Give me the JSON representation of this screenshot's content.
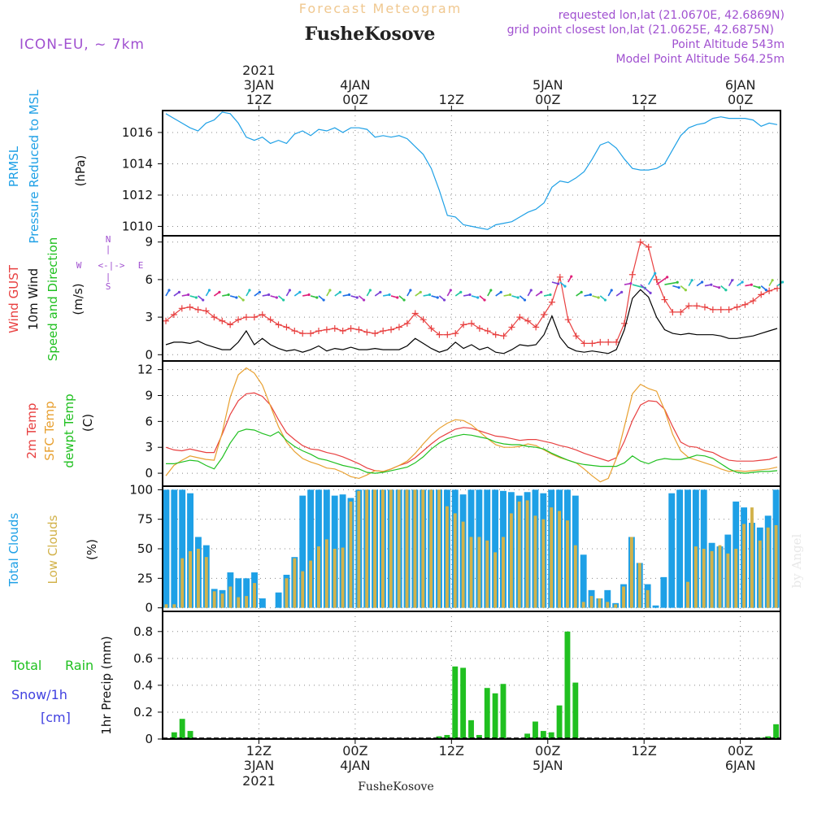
{
  "header": {
    "program_title": "Forecast Meteogram",
    "model": "ICON-EU, ~ 7km",
    "location": "FusheKosove",
    "requested_point": "requested lon,lat (21.0670E, 42.6869N)",
    "grid_point": "grid point closest lon,lat (21.0625E, 42.6875N)",
    "point_altitude": "Point Altitude 543m",
    "model_altitude": "Model Point Altitude 564.25m",
    "watermark": "by Angel"
  },
  "time_axis": {
    "start_hour": 0,
    "end_hour": 77,
    "year_label": "2021",
    "ticks": [
      {
        "hour": 12,
        "day": "3JAN",
        "time": "12Z",
        "year": "2021"
      },
      {
        "hour": 24,
        "day": "4JAN",
        "time": "00Z",
        "year": ""
      },
      {
        "hour": 36,
        "day": "",
        "time": "12Z",
        "year": ""
      },
      {
        "hour": 48,
        "day": "5JAN",
        "time": "00Z",
        "year": ""
      },
      {
        "hour": 60,
        "day": "",
        "time": "12Z",
        "year": ""
      },
      {
        "hour": 72,
        "day": "6JAN",
        "time": "00Z",
        "year": ""
      }
    ],
    "bottom_location": "FusheKosove"
  },
  "chart_data": [
    {
      "id": "pressure",
      "type": "line",
      "labels": {
        "left1": "PRMSL",
        "left2": "Pressure Reduced to MSL",
        "unit": "(hPa)"
      },
      "ylim": [
        1009.4,
        1017.4
      ],
      "yticks": [
        1010,
        1012,
        1014,
        1016
      ],
      "series": [
        {
          "name": "PRMSL",
          "color": "#1ea0e6",
          "values": [
            1017.2,
            1016.9,
            1016.6,
            1016.3,
            1016.1,
            1016.6,
            1016.8,
            1017.3,
            1017.2,
            1016.6,
            1015.7,
            1015.5,
            1015.7,
            1015.3,
            1015.5,
            1015.3,
            1015.9,
            1016.1,
            1015.8,
            1016.2,
            1016.1,
            1016.3,
            1016.0,
            1016.3,
            1016.3,
            1016.2,
            1015.7,
            1015.8,
            1015.7,
            1015.8,
            1015.6,
            1015.1,
            1014.6,
            1013.7,
            1012.3,
            1010.7,
            1010.6,
            1010.1,
            1010.0,
            1009.9,
            1009.8,
            1010.1,
            1010.2,
            1010.3,
            1010.6,
            1010.9,
            1011.1,
            1011.5,
            1012.5,
            1012.9,
            1012.8,
            1013.1,
            1013.5,
            1014.3,
            1015.2,
            1015.4,
            1015.0,
            1014.3,
            1013.7,
            1013.6,
            1013.6,
            1013.7,
            1014.0,
            1014.9,
            1015.8,
            1016.3,
            1016.5,
            1016.6,
            1016.9,
            1017.0,
            1016.9,
            1016.9,
            1016.9,
            1016.8,
            1016.4,
            1016.6,
            1016.5
          ]
        }
      ]
    },
    {
      "id": "wind",
      "type": "line",
      "labels": {
        "left1": "Wind GUST",
        "left2": "10m Wind",
        "left3": "Speed and Direction",
        "unit": "(m/s)",
        "compass_n": "N",
        "compass_w": "W",
        "compass_e": "E",
        "compass_s": "S"
      },
      "ylim": [
        -0.5,
        9.5
      ],
      "yticks": [
        0,
        3,
        6,
        9
      ],
      "series": [
        {
          "name": "Wind GUST",
          "color": "#e84040",
          "marker": "+",
          "values": [
            2.7,
            3.2,
            3.7,
            3.8,
            3.6,
            3.5,
            3.0,
            2.7,
            2.4,
            2.8,
            3.0,
            3.0,
            3.2,
            2.8,
            2.4,
            2.2,
            1.9,
            1.7,
            1.7,
            1.9,
            2.0,
            2.1,
            1.9,
            2.1,
            2.0,
            1.8,
            1.7,
            1.9,
            2.0,
            2.2,
            2.5,
            3.3,
            2.8,
            2.1,
            1.6,
            1.6,
            1.7,
            2.4,
            2.5,
            2.1,
            1.9,
            1.6,
            1.5,
            2.2,
            3.0,
            2.7,
            2.2,
            3.2,
            4.2,
            6.2,
            2.8,
            1.5,
            0.9,
            0.9,
            1.0,
            1.0,
            1.0,
            2.5,
            6.4,
            9.0,
            8.6,
            6.0,
            4.4,
            3.4,
            3.4,
            3.9,
            3.9,
            3.8,
            3.6,
            3.6,
            3.6,
            3.8,
            4.0,
            4.3,
            4.8,
            5.1,
            5.3
          ]
        },
        {
          "name": "10m Wind",
          "color": "#000000",
          "marker": "",
          "values": [
            0.8,
            1.0,
            1.0,
            0.9,
            1.1,
            0.8,
            0.6,
            0.4,
            0.4,
            1.0,
            1.9,
            0.8,
            1.3,
            0.8,
            0.5,
            0.3,
            0.4,
            0.2,
            0.4,
            0.7,
            0.3,
            0.5,
            0.4,
            0.6,
            0.4,
            0.4,
            0.5,
            0.4,
            0.4,
            0.4,
            0.7,
            1.3,
            0.9,
            0.5,
            0.2,
            0.4,
            1.0,
            0.5,
            0.8,
            0.4,
            0.6,
            0.2,
            0.1,
            0.4,
            0.8,
            0.7,
            0.8,
            1.6,
            3.1,
            1.4,
            0.6,
            0.3,
            0.2,
            0.3,
            0.2,
            0.1,
            0.4,
            2.0,
            4.5,
            5.2,
            4.6,
            3.0,
            2.0,
            1.7,
            1.6,
            1.7,
            1.6,
            1.6,
            1.6,
            1.5,
            1.3,
            1.3,
            1.4,
            1.5,
            1.7,
            1.9,
            2.1
          ]
        }
      ],
      "barb_colors": [
        "#1e6ee6",
        "#7a40d6",
        "#1e6ee6",
        "#7a40d6",
        "#20b0e0",
        "#90d040",
        "#b030c0",
        "#e0207a",
        "#20c0c0",
        "#20c8a0",
        "#30c040"
      ]
    },
    {
      "id": "temperature",
      "type": "line",
      "labels": {
        "left1": "2m Temp",
        "left2": "SFC Temp",
        "left3": "dewpt Temp",
        "unit": "(C)"
      },
      "ylim": [
        -1.5,
        13.0
      ],
      "yticks": [
        0,
        3,
        6,
        9,
        12
      ],
      "series": [
        {
          "name": "2m Temp",
          "color": "#e84040",
          "values": [
            3.0,
            2.7,
            2.6,
            2.8,
            2.6,
            2.4,
            2.4,
            4.5,
            6.8,
            8.4,
            9.2,
            9.3,
            8.9,
            7.9,
            6.2,
            4.7,
            3.9,
            3.2,
            2.8,
            2.7,
            2.4,
            2.2,
            1.9,
            1.5,
            1.1,
            0.6,
            0.3,
            0.2,
            0.5,
            0.9,
            1.2,
            1.8,
            2.6,
            3.4,
            4.1,
            4.6,
            5.1,
            5.3,
            5.2,
            4.9,
            4.6,
            4.3,
            4.2,
            4.0,
            3.8,
            3.9,
            3.9,
            3.7,
            3.5,
            3.2,
            3.0,
            2.7,
            2.3,
            2.0,
            1.7,
            1.4,
            1.8,
            3.7,
            6.1,
            7.9,
            8.4,
            8.3,
            7.4,
            5.4,
            3.6,
            3.1,
            3.0,
            2.6,
            2.4,
            1.9,
            1.5,
            1.4,
            1.4,
            1.4,
            1.5,
            1.6,
            1.9
          ]
        },
        {
          "name": "SFC Temp",
          "color": "#e8a030",
          "values": [
            -0.3,
            0.9,
            1.5,
            2.0,
            1.8,
            1.6,
            1.5,
            4.7,
            8.8,
            11.4,
            12.2,
            11.6,
            10.2,
            7.8,
            5.4,
            3.6,
            2.5,
            1.7,
            1.3,
            1.0,
            0.6,
            0.5,
            0.1,
            -0.4,
            -0.6,
            -0.2,
            0.3,
            0.2,
            0.5,
            0.9,
            1.4,
            2.3,
            3.4,
            4.4,
            5.2,
            5.8,
            6.2,
            6.1,
            5.6,
            4.8,
            4.0,
            3.3,
            3.0,
            3.0,
            3.1,
            3.4,
            3.2,
            2.7,
            2.2,
            1.8,
            1.5,
            1.2,
            0.5,
            -0.3,
            -1.0,
            -0.6,
            1.7,
            5.4,
            9.2,
            10.3,
            9.8,
            9.5,
            7.3,
            4.5,
            2.6,
            1.8,
            1.5,
            1.2,
            0.9,
            0.5,
            0.2,
            0.3,
            0.2,
            0.3,
            0.4,
            0.5,
            0.7
          ]
        },
        {
          "name": "dewpt Temp",
          "color": "#20c020",
          "values": [
            1.1,
            1.1,
            1.3,
            1.5,
            1.4,
            0.9,
            0.5,
            1.8,
            3.5,
            4.8,
            5.1,
            5.0,
            4.6,
            4.3,
            4.8,
            3.8,
            3.1,
            2.6,
            2.2,
            1.7,
            1.5,
            1.2,
            0.9,
            0.7,
            0.5,
            0.1,
            0.0,
            0.1,
            0.3,
            0.5,
            0.7,
            1.2,
            1.9,
            2.8,
            3.5,
            4.0,
            4.3,
            4.5,
            4.4,
            4.2,
            4.0,
            3.6,
            3.4,
            3.3,
            3.3,
            3.1,
            3.0,
            2.8,
            2.3,
            1.9,
            1.5,
            1.2,
            1.0,
            0.9,
            0.8,
            0.8,
            0.8,
            1.2,
            2.0,
            1.4,
            1.1,
            1.5,
            1.7,
            1.6,
            1.6,
            1.8,
            2.1,
            2.0,
            1.7,
            1.1,
            0.5,
            0.1,
            0.0,
            0.1,
            0.2,
            0.2,
            0.3
          ]
        }
      ]
    },
    {
      "id": "clouds",
      "type": "bar",
      "labels": {
        "left1": "Total Clouds",
        "left2": "Low Clouds",
        "unit": "(%)"
      },
      "ylim": [
        -3,
        103
      ],
      "yticks": [
        0,
        25,
        50,
        75,
        100
      ],
      "series": [
        {
          "name": "Total Clouds",
          "color": "#1ea0e6",
          "values": [
            100,
            100,
            100,
            97,
            60,
            53,
            16,
            15,
            30,
            25,
            25,
            30,
            8,
            0,
            13,
            28,
            43,
            95,
            100,
            100,
            100,
            95,
            96,
            93,
            100,
            100,
            100,
            100,
            100,
            100,
            100,
            100,
            100,
            100,
            100,
            100,
            100,
            96,
            100,
            100,
            100,
            100,
            99,
            98,
            95,
            98,
            100,
            97,
            100,
            100,
            100,
            95,
            45,
            15,
            8,
            15,
            4,
            20,
            60,
            38,
            20,
            2,
            26,
            97,
            100,
            100,
            100,
            100,
            55,
            52,
            62,
            90,
            85,
            72,
            68,
            78,
            100
          ]
        },
        {
          "name": "Low Clouds",
          "color": "#d2b24a",
          "values": [
            3,
            3,
            42,
            48,
            50,
            43,
            14,
            12,
            18,
            9,
            10,
            21,
            0,
            0,
            0,
            25,
            42,
            31,
            40,
            52,
            58,
            50,
            51,
            90,
            99,
            100,
            100,
            100,
            100,
            100,
            100,
            100,
            100,
            100,
            100,
            86,
            80,
            73,
            60,
            60,
            57,
            47,
            60,
            80,
            90,
            91,
            78,
            75,
            85,
            82,
            74,
            53,
            5,
            10,
            8,
            5,
            3,
            18,
            60,
            38,
            15,
            0,
            0,
            0,
            0,
            22,
            52,
            50,
            48,
            53,
            46,
            50,
            71,
            85,
            57,
            68,
            70
          ]
        }
      ]
    },
    {
      "id": "precip",
      "type": "bar",
      "labels": {
        "left1": "Total",
        "left2": "Rain",
        "left3": "Snow/1h",
        "left4": "[cm]",
        "unit": "1hr Precip (mm)"
      },
      "ylim": [
        0,
        0.95
      ],
      "yticks": [
        0,
        0.2,
        0.4,
        0.6,
        0.8
      ],
      "ytick_labels": [
        "0",
        "0.2",
        "0.4",
        "0.6",
        "0.8"
      ],
      "series": [
        {
          "name": "Total Rain",
          "color": "#20c020",
          "values": [
            0,
            0.05,
            0.15,
            0.06,
            0,
            0,
            0,
            0,
            0,
            0,
            0,
            0,
            0,
            0,
            0,
            0,
            0,
            0,
            0,
            0,
            0,
            0,
            0,
            0,
            0,
            0,
            0,
            0,
            0,
            0,
            0,
            0,
            0,
            0,
            0.02,
            0.03,
            0.54,
            0.53,
            0.14,
            0.03,
            0.38,
            0.34,
            0.41,
            0,
            0,
            0.04,
            0.13,
            0.06,
            0.05,
            0.25,
            0.8,
            0.42,
            0,
            0,
            0,
            0,
            0,
            0,
            0,
            0,
            0,
            0,
            0,
            0,
            0,
            0,
            0,
            0,
            0,
            0,
            0,
            0,
            0,
            0,
            0.01,
            0.02,
            0.11
          ]
        }
      ]
    }
  ]
}
